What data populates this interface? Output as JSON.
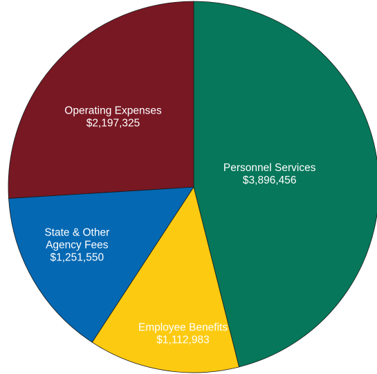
{
  "chart_data": {
    "type": "pie",
    "start_angle_degrees_clockwise_from_top": 0,
    "direction": "clockwise",
    "slices": [
      {
        "name": "Personnel Services",
        "value": 3896456,
        "value_label": "$3,896,456",
        "label_lines": [
          "Personnel Services"
        ],
        "color": "#06775a",
        "text_color": "#ffffff"
      },
      {
        "name": "Employee Benefits",
        "value": 1112983,
        "value_label": "$1,112,983",
        "label_lines": [
          "Employee Benefits"
        ],
        "color": "#fcca11",
        "text_color": "#1a1a1a"
      },
      {
        "name": "State & Other Agency Fees",
        "value": 1251550,
        "value_label": "$1,251,550",
        "label_lines": [
          "State & Other",
          "Agency Fees"
        ],
        "color": "#0568b3",
        "text_color": "#ffffff"
      },
      {
        "name": "Operating Expenses",
        "value": 2197325,
        "value_label": "$2,197,325",
        "label_lines": [
          "Operating Expenses"
        ],
        "color": "#781823",
        "text_color": "#ffffff"
      }
    ]
  }
}
